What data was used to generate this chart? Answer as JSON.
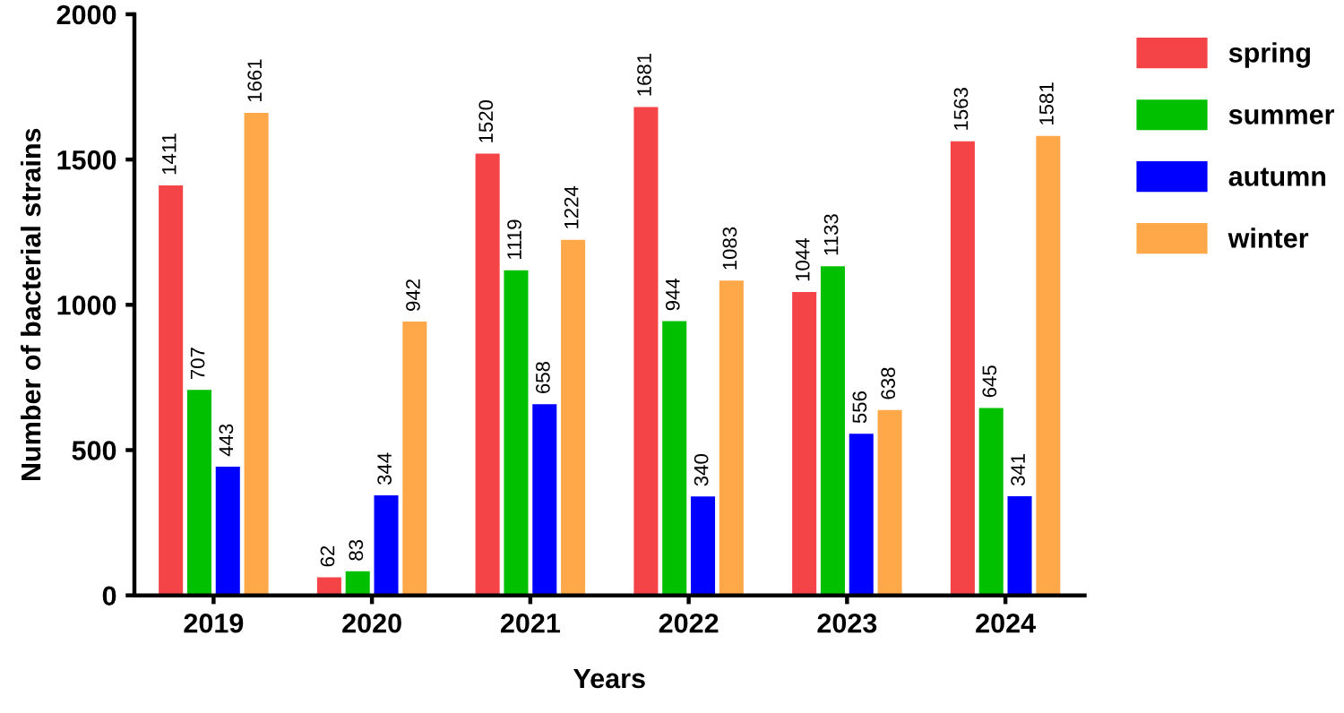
{
  "chart_data": {
    "type": "bar",
    "xlabel": "Years",
    "ylabel": "Number of bacterial strains",
    "categories": [
      "2019",
      "2020",
      "2021",
      "2022",
      "2023",
      "2024"
    ],
    "series": [
      {
        "name": "spring",
        "color": "#f44448",
        "values": [
          1411,
          62,
          1520,
          1681,
          1044,
          1563
        ]
      },
      {
        "name": "summer",
        "color": "#00c000",
        "values": [
          707,
          83,
          1119,
          944,
          1133,
          645
        ]
      },
      {
        "name": "autumn",
        "color": "#0000ff",
        "values": [
          443,
          344,
          658,
          340,
          556,
          341
        ]
      },
      {
        "name": "winter",
        "color": "#ffa84a",
        "values": [
          1661,
          942,
          1224,
          1083,
          638,
          1581
        ]
      }
    ],
    "ylim": [
      0,
      2000
    ],
    "yticks": [
      0,
      500,
      1000,
      1500,
      2000
    ],
    "grid": false,
    "legend": "right",
    "data_labels": true
  }
}
